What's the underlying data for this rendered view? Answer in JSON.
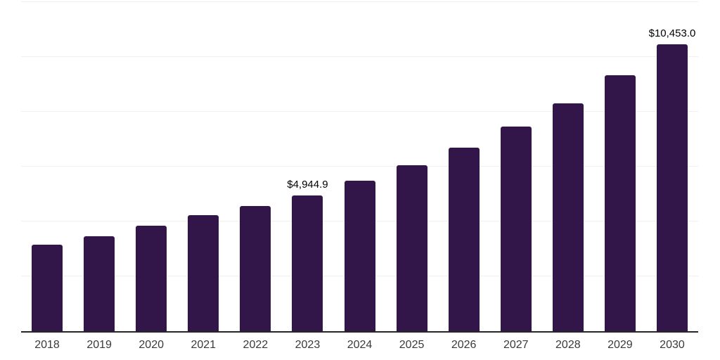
{
  "chart_data": {
    "type": "bar",
    "title": "",
    "xlabel": "",
    "ylabel": "",
    "categories": [
      "2018",
      "2019",
      "2020",
      "2021",
      "2022",
      "2023",
      "2024",
      "2025",
      "2026",
      "2027",
      "2028",
      "2029",
      "2030"
    ],
    "values": [
      3150,
      3450,
      3840,
      4220,
      4560,
      4944.9,
      5480,
      6040,
      6700,
      7450,
      8320,
      9340,
      10453.0
    ],
    "labeled_points": [
      {
        "category": "2023",
        "label": "$4,944.9"
      },
      {
        "category": "2030",
        "label": "$10,453.0"
      }
    ],
    "ylim": [
      0,
      12000
    ],
    "gridlines": [
      2000,
      4000,
      6000,
      8000,
      10000,
      12000
    ],
    "grid": true,
    "legend": false,
    "y_axis_tick_labels_visible": false,
    "colors": {
      "bar": "#321549",
      "axis_line": "#262626",
      "gridline": "#f0f0f0",
      "value_label_text": "#000000",
      "tick_label_text": "#3a3a3a",
      "background": "#ffffff"
    }
  }
}
